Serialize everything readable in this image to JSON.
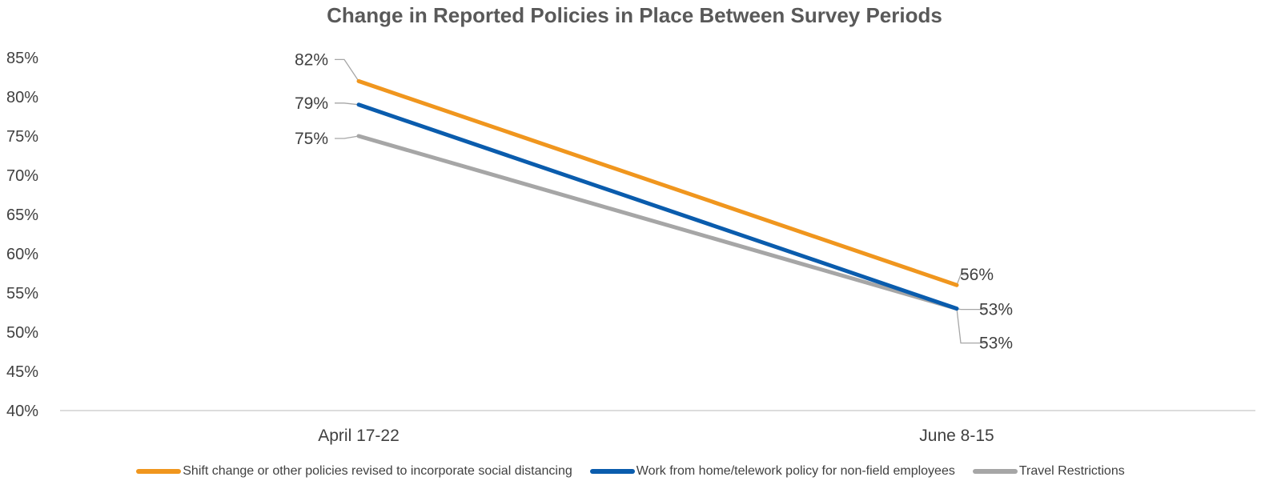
{
  "chart_data": {
    "type": "line",
    "title": "Change in Reported Policies in Place Between Survey Periods",
    "xlabel": "",
    "ylabel": "",
    "categories": [
      "April 17-22",
      "June 8-15"
    ],
    "ylim": [
      40,
      85
    ],
    "yticks": [
      40,
      45,
      50,
      55,
      60,
      65,
      70,
      75,
      80,
      85
    ],
    "ytick_labels": [
      "40%",
      "45%",
      "50%",
      "55%",
      "60%",
      "65%",
      "70%",
      "75%",
      "80%",
      "85%"
    ],
    "grid": false,
    "legend_position": "bottom",
    "series": [
      {
        "name": "Shift change or other policies revised to incorporate social distancing",
        "color": "#F0961E",
        "values": [
          82,
          56
        ],
        "labels": [
          "82%",
          "56%"
        ]
      },
      {
        "name": "Work from home/telework policy for non-field employees",
        "color": "#0A5CAD",
        "values": [
          79,
          53
        ],
        "labels": [
          "79%",
          "53%"
        ]
      },
      {
        "name": "Travel Restrictions",
        "color": "#A6A6A6",
        "values": [
          75,
          53
        ],
        "labels": [
          "75%",
          "53%"
        ]
      }
    ]
  }
}
